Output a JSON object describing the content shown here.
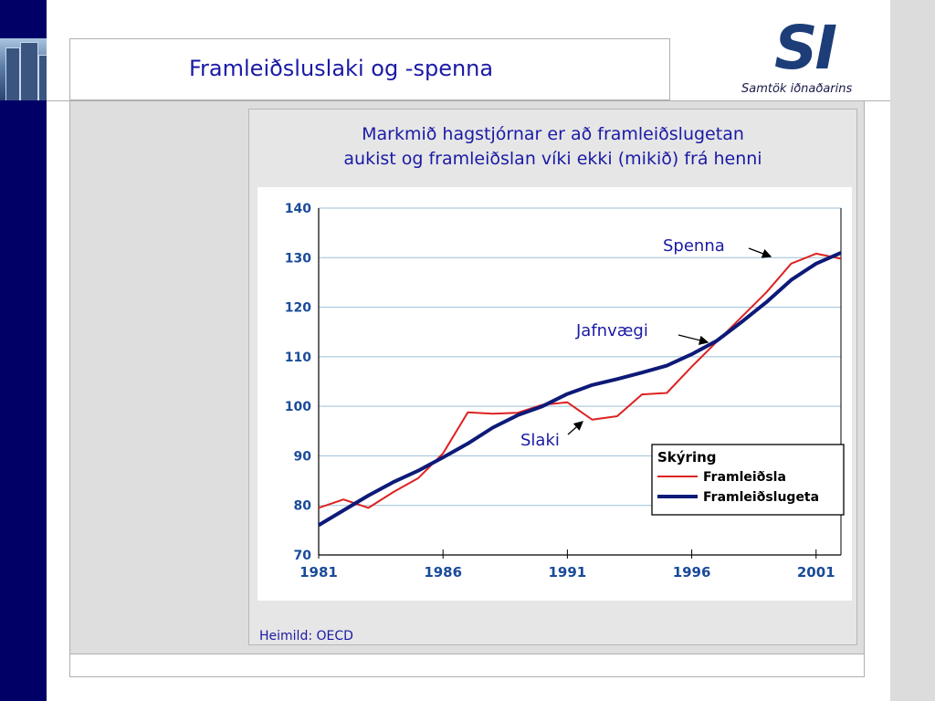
{
  "slide": {
    "title": "Framleiðsluslaki og -spenna",
    "subtitle_line1": "Markmið hagstjórnar er að framleiðslugetan",
    "subtitle_line2": "aukist og framleiðslan víki ekki (mikið) frá henni",
    "source": "Heimild: OECD"
  },
  "logo": {
    "mark": "SI",
    "text": "Samtök iðnaðarins"
  },
  "colors": {
    "accent_navy": "#000066",
    "title_blue": "#1a1aa6",
    "framleidsla_red": "#dd2222",
    "framleidslugeta_navy": "#0d1a78"
  },
  "chart_data": {
    "type": "line",
    "title": "",
    "xlabel": "",
    "ylabel": "",
    "xlim": [
      1981,
      2002
    ],
    "ylim": [
      70,
      140
    ],
    "yticks": [
      "70",
      "80",
      "90",
      "100",
      "110",
      "120",
      "130",
      "140"
    ],
    "xticks": [
      "1981",
      "1986",
      "1991",
      "1996",
      "2001"
    ],
    "grid": "horizontal",
    "legend": {
      "title": "Skýring",
      "placement": "bottom-right"
    },
    "series": [
      {
        "name": "Framleiðsla",
        "color": "#dd2222",
        "x": [
          1981,
          1982,
          1983,
          1984,
          1985,
          1986,
          1987,
          1988,
          1989,
          1990,
          1991,
          1992,
          1993,
          1994,
          1995,
          1996,
          1997,
          1998,
          1999,
          2000,
          2001,
          2002
        ],
        "values": [
          79.5,
          81.2,
          79.5,
          82.7,
          85.5,
          90.5,
          98.8,
          98.5,
          98.7,
          100.3,
          100.8,
          97.3,
          98.0,
          102.4,
          102.7,
          108.0,
          113.0,
          118.0,
          123.0,
          128.8,
          130.8,
          129.8
        ]
      },
      {
        "name": "Framleiðslugeta",
        "color": "#0d1a78",
        "x": [
          1981,
          1982,
          1983,
          1984,
          1985,
          1986,
          1987,
          1988,
          1989,
          1990,
          1991,
          1992,
          1993,
          1994,
          1995,
          1996,
          1997,
          1998,
          1999,
          2000,
          2001,
          2002
        ],
        "values": [
          76.0,
          79.0,
          82.0,
          84.7,
          87.0,
          89.7,
          92.5,
          95.7,
          98.2,
          100.0,
          102.5,
          104.3,
          105.5,
          106.8,
          108.2,
          110.5,
          113.2,
          117.0,
          121.0,
          125.5,
          128.8,
          131.0
        ]
      }
    ],
    "annotations": [
      {
        "text": "Spenna",
        "x": 2000.5,
        "y": 129.5
      },
      {
        "text": "Jafnvægi",
        "x": 1996.6,
        "y": 113.2
      },
      {
        "text": "Slaki",
        "x": 1991.6,
        "y": 98.2
      }
    ]
  }
}
